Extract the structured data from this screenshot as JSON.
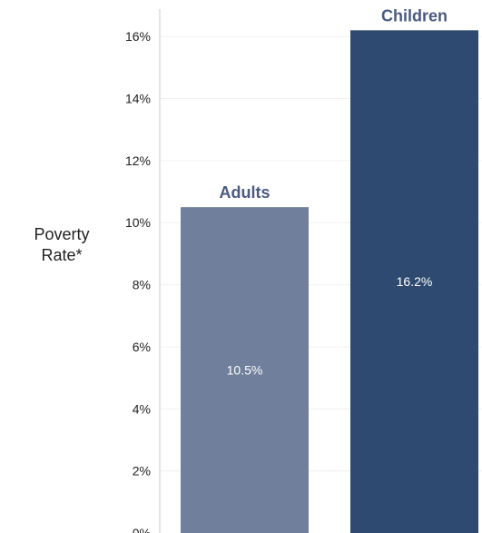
{
  "chart_data": {
    "type": "bar",
    "ylabel_lines": [
      "Poverty",
      "Rate*"
    ],
    "categories": [
      "Adults",
      "Children"
    ],
    "values": [
      10.5,
      16.2
    ],
    "value_labels": [
      "10.5%",
      "16.2%"
    ],
    "bar_colors": [
      "#6f7f9c",
      "#2e4a70"
    ],
    "label_color": "#4a5a80",
    "ylim": [
      0,
      17
    ],
    "yticks": [
      0,
      2,
      4,
      6,
      8,
      10,
      12,
      14,
      16
    ],
    "ytick_labels": [
      "0%",
      "2%",
      "4%",
      "6%",
      "8%",
      "10%",
      "12%",
      "14%",
      "16%"
    ],
    "grid": true,
    "legend": "none"
  }
}
